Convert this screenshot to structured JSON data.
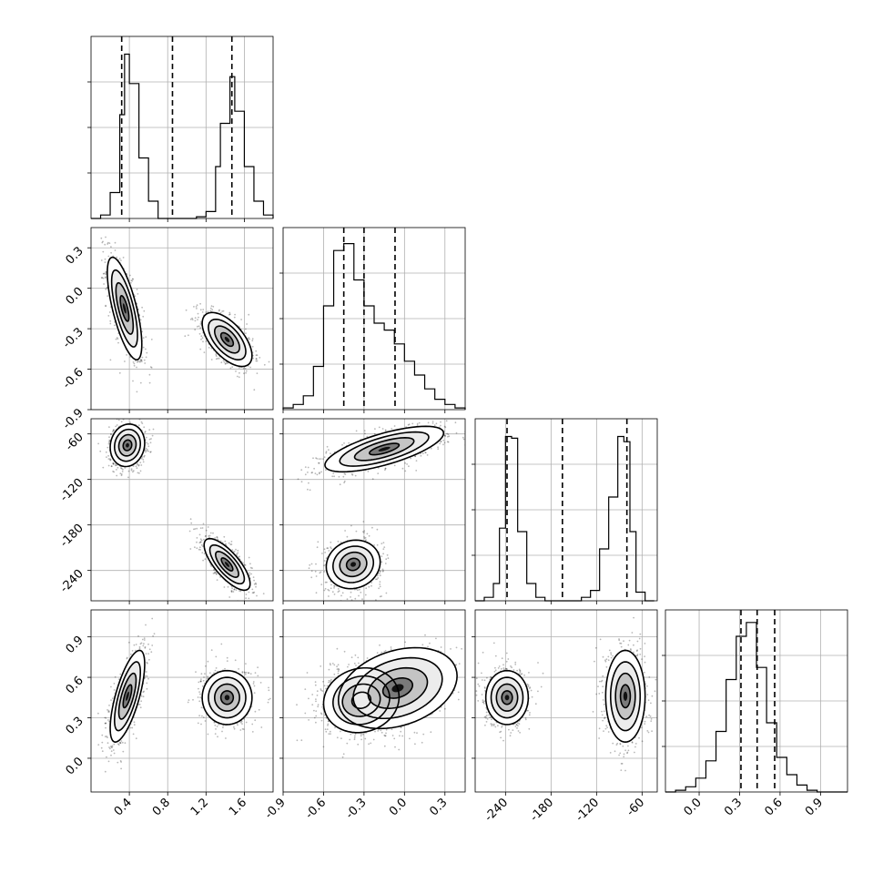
{
  "chart_data": {
    "type": "corner",
    "description_free": true,
    "params": [
      {
        "index": 0,
        "range": [
          0.0,
          1.9
        ],
        "ticks": [
          "0.4",
          "0.8",
          "1.2",
          "1.6"
        ],
        "tick_values": [
          0.4,
          0.8,
          1.2,
          1.6
        ],
        "quantiles": [
          0.32,
          0.85,
          1.47
        ],
        "hist": {
          "type": "bar",
          "edges": [
            0.0,
            0.1,
            0.2,
            0.3,
            0.35,
            0.4,
            0.5,
            0.6,
            0.7,
            0.8,
            0.9,
            1.0,
            1.1,
            1.2,
            1.3,
            1.35,
            1.45,
            1.5,
            1.6,
            1.7,
            1.8,
            1.9
          ],
          "counts": [
            0,
            0.02,
            0.15,
            0.6,
            0.95,
            0.78,
            0.35,
            0.1,
            0,
            0,
            0,
            0,
            0.01,
            0.04,
            0.3,
            0.55,
            0.82,
            0.62,
            0.3,
            0.1,
            0.02
          ],
          "ylim": [
            0,
            1.0
          ]
        }
      },
      {
        "index": 1,
        "range": [
          -0.9,
          0.45
        ],
        "ticks": [
          "-0.9",
          "-0.6",
          "-0.3",
          "0.0",
          "0.3"
        ],
        "tick_values": [
          -0.9,
          -0.6,
          -0.3,
          0.0,
          0.3
        ],
        "quantiles": [
          -0.45,
          -0.3,
          -0.07
        ],
        "hist": {
          "type": "bar",
          "edges": [
            -0.9,
            -0.825,
            -0.75,
            -0.675,
            -0.6,
            -0.525,
            -0.45,
            -0.375,
            -0.3,
            -0.225,
            -0.15,
            -0.075,
            0.0,
            0.075,
            0.15,
            0.225,
            0.3,
            0.375,
            0.45
          ],
          "counts": [
            0.01,
            0.03,
            0.08,
            0.25,
            0.6,
            0.92,
            0.96,
            0.75,
            0.6,
            0.5,
            0.46,
            0.38,
            0.28,
            0.2,
            0.12,
            0.06,
            0.03,
            0.01
          ],
          "ylim": [
            0,
            1.0
          ]
        }
      },
      {
        "index": 2,
        "range": [
          -280,
          -40
        ],
        "ticks": [
          "-240",
          "-180",
          "-120",
          "-60"
        ],
        "tick_values": [
          -240,
          -180,
          -120,
          -60
        ],
        "quantiles": [
          -238,
          -165,
          -80
        ],
        "hist": {
          "type": "bar",
          "edges": [
            -280,
            -268,
            -256,
            -248,
            -240,
            -232,
            -224,
            -212,
            -200,
            -188,
            -176,
            -164,
            -152,
            -140,
            -128,
            -116,
            -104,
            -92,
            -84,
            -76,
            -68,
            -56,
            -44
          ],
          "counts": [
            0,
            0.02,
            0.1,
            0.42,
            0.95,
            0.94,
            0.4,
            0.1,
            0.02,
            0,
            0,
            0,
            0,
            0.02,
            0.06,
            0.3,
            0.6,
            0.95,
            0.92,
            0.4,
            0.05,
            0
          ],
          "ylim": [
            0,
            1.0
          ]
        }
      },
      {
        "index": 3,
        "range": [
          -0.25,
          1.1
        ],
        "ticks": [
          "0.0",
          "0.3",
          "0.6",
          "0.9"
        ],
        "tick_values": [
          0.0,
          0.3,
          0.6,
          0.9
        ],
        "quantiles": [
          0.31,
          0.43,
          0.56
        ],
        "hist": {
          "type": "bar",
          "edges": [
            -0.25,
            -0.175,
            -0.1,
            -0.025,
            0.05,
            0.125,
            0.2,
            0.275,
            0.35,
            0.425,
            0.5,
            0.575,
            0.65,
            0.725,
            0.8,
            0.875,
            0.95,
            1.025,
            1.1
          ],
          "counts": [
            0,
            0.01,
            0.03,
            0.08,
            0.18,
            0.35,
            0.65,
            0.9,
            0.98,
            0.72,
            0.4,
            0.2,
            0.1,
            0.04,
            0.01,
            0,
            0,
            0
          ],
          "ylim": [
            0,
            1.0
          ]
        }
      }
    ],
    "pairs": [
      {
        "x": 0,
        "y": 1,
        "type": "contour",
        "modes": [
          {
            "center": [
              0.35,
              -0.15
            ],
            "sx": 0.09,
            "sy": 0.19,
            "corr": -0.7,
            "weight": 0.5
          },
          {
            "center": [
              1.42,
              -0.38
            ],
            "sx": 0.13,
            "sy": 0.1,
            "corr": -0.6,
            "weight": 0.5
          }
        ]
      },
      {
        "x": 0,
        "y": 2,
        "type": "contour",
        "modes": [
          {
            "center": [
              0.38,
              -75
            ],
            "sx": 0.09,
            "sy": 14,
            "corr": 0.1,
            "weight": 0.5
          },
          {
            "center": [
              1.42,
              -232
            ],
            "sx": 0.12,
            "sy": 17,
            "corr": -0.75,
            "weight": 0.5
          }
        ]
      },
      {
        "x": 1,
        "y": 2,
        "type": "contour",
        "modes": [
          {
            "center": [
              -0.15,
              -80
            ],
            "sx": 0.22,
            "sy": 15,
            "corr": 0.7,
            "weight": 0.5
          },
          {
            "center": [
              -0.38,
              -232
            ],
            "sx": 0.1,
            "sy": 16,
            "corr": 0.1,
            "weight": 0.5
          }
        ]
      },
      {
        "x": 0,
        "y": 3,
        "type": "contour",
        "modes": [
          {
            "center": [
              0.38,
              0.46
            ],
            "sx": 0.09,
            "sy": 0.17,
            "corr": 0.7,
            "weight": 0.5
          },
          {
            "center": [
              1.42,
              0.45
            ],
            "sx": 0.13,
            "sy": 0.1,
            "corr": 0.0,
            "weight": 0.5
          }
        ]
      },
      {
        "x": 1,
        "y": 3,
        "type": "contour",
        "modes": [
          {
            "center": [
              -0.32,
              0.43
            ],
            "sx": 0.14,
            "sy": 0.12,
            "corr": 0.1,
            "weight": 0.65
          },
          {
            "center": [
              -0.05,
              0.52
            ],
            "sx": 0.22,
            "sy": 0.15,
            "corr": 0.3,
            "weight": 0.35
          }
        ]
      },
      {
        "x": 2,
        "y": 3,
        "type": "contour",
        "modes": [
          {
            "center": [
              -238,
              0.45
            ],
            "sx": 14,
            "sy": 0.1,
            "corr": 0.0,
            "weight": 0.5
          },
          {
            "center": [
              -82,
              0.46
            ],
            "sx": 13,
            "sy": 0.17,
            "corr": 0.0,
            "weight": 0.5
          }
        ]
      }
    ],
    "contour_levels_sigma": [
      0.5,
      1.0,
      1.5,
      2.0
    ],
    "grid": true,
    "quantile_line_style": "dashed",
    "title": "",
    "legend": ""
  }
}
